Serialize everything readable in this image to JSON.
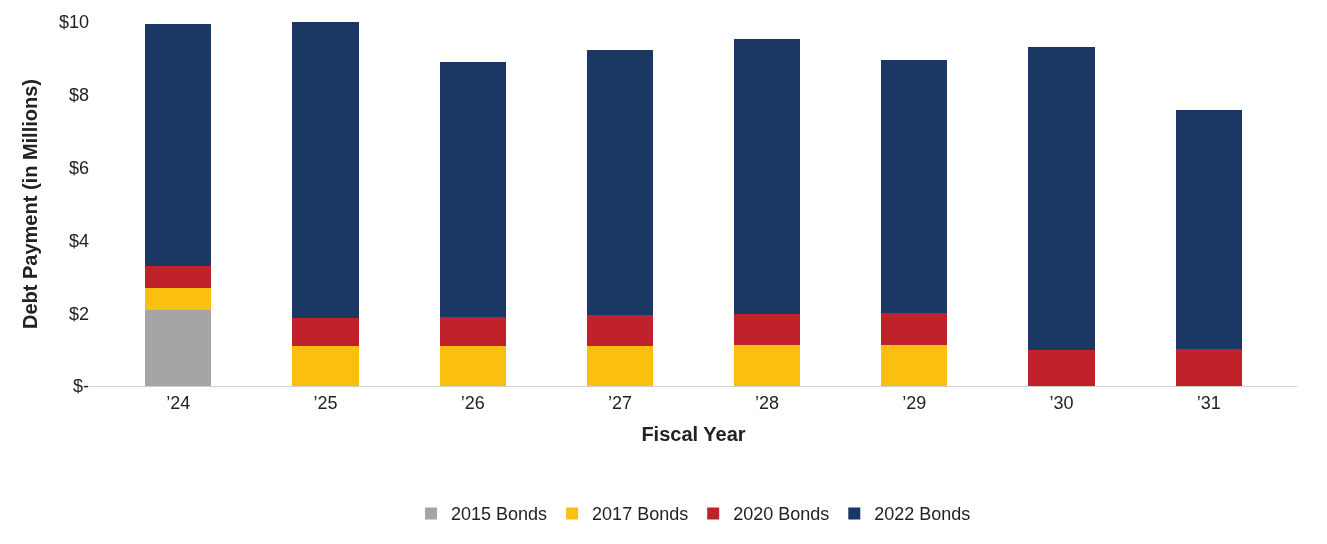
{
  "chart_data": {
    "type": "bar",
    "stacked": true,
    "xlabel": "Fiscal Year",
    "ylabel": "Debt Payment (in Millions)",
    "categories": [
      "’24",
      "’25",
      "’26",
      "’27",
      "’28",
      "’29",
      "’30",
      "’31"
    ],
    "series": [
      {
        "name": "2015 Bonds",
        "color": "#a5a5a5",
        "values": [
          2.08,
          null,
          null,
          null,
          null,
          null,
          null,
          null
        ]
      },
      {
        "name": "2017 Bonds",
        "color": "#fbbf10",
        "values": [
          0.6,
          1.11,
          1.11,
          1.11,
          1.14,
          1.14,
          null,
          null
        ]
      },
      {
        "name": "2020 Bonds",
        "color": "#c0222b",
        "values": [
          0.62,
          0.75,
          0.78,
          0.84,
          0.83,
          0.86,
          1.0,
          1.03
        ]
      },
      {
        "name": "2022 Bonds",
        "color": "#1b3764",
        "values": [
          6.65,
          8.14,
          7.0,
          7.27,
          7.57,
          6.95,
          8.32,
          6.56
        ]
      }
    ],
    "ylim": [
      0,
      10
    ],
    "yticks": [
      {
        "value": 0,
        "label": "$-"
      },
      {
        "value": 2,
        "label": "$2"
      },
      {
        "value": 4,
        "label": "$4"
      },
      {
        "value": 6,
        "label": "$6"
      },
      {
        "value": 8,
        "label": "$8"
      },
      {
        "value": 10,
        "label": "$10"
      }
    ],
    "legend": "bottom"
  }
}
